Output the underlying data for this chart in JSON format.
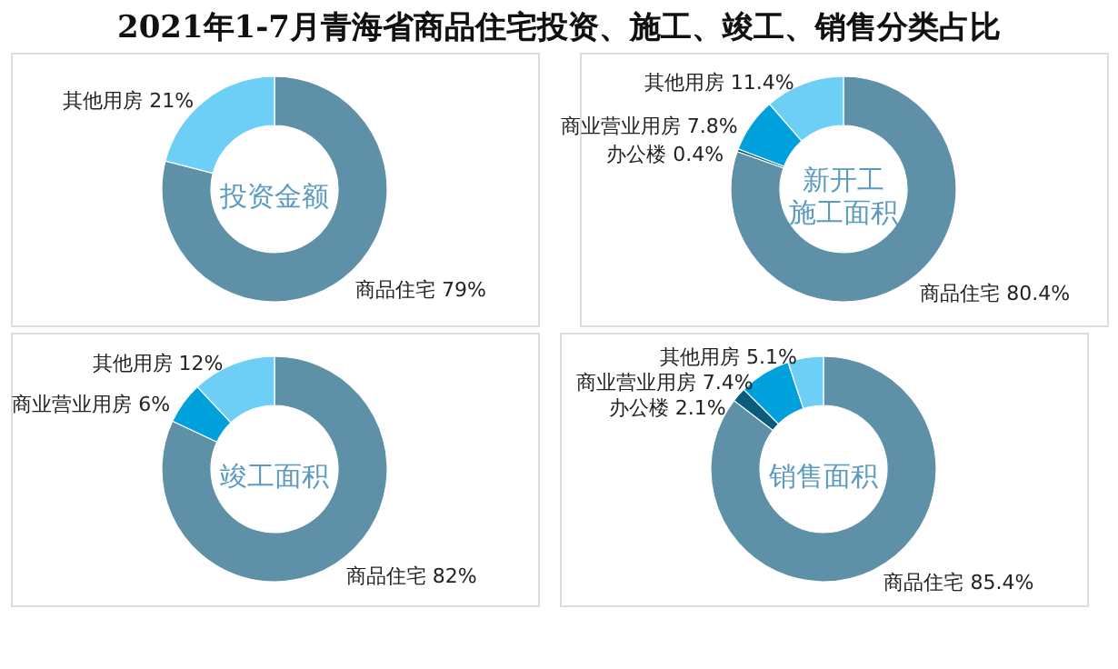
{
  "chart_data": [
    {
      "type": "other",
      "title": "2021年1-7月青海省商品住宅投资、施工、竣工、销售分类占比"
    },
    {
      "type": "donut",
      "title": "投资金额",
      "categories": [
        "商品住宅",
        "其他用房"
      ],
      "values": [
        79,
        21
      ],
      "colors": [
        "#5e91a8",
        "#6ecff6"
      ],
      "value_labels": [
        "79%",
        "21%"
      ]
    },
    {
      "type": "donut",
      "title": "新开工施工面积",
      "categories": [
        "商品住宅",
        "办公楼",
        "商业营业用房",
        "其他用房"
      ],
      "values": [
        80.4,
        0.4,
        7.8,
        11.4
      ],
      "colors": [
        "#5e91a8",
        "#0a5c7a",
        "#00a0dc",
        "#6ecff6"
      ],
      "value_labels": [
        "80.4%",
        "0.4%",
        "7.8%",
        "11.4%"
      ]
    },
    {
      "type": "donut",
      "title": "竣工面积",
      "categories": [
        "商品住宅",
        "商业营业用房",
        "其他用房"
      ],
      "values": [
        82,
        6,
        12
      ],
      "colors": [
        "#5e91a8",
        "#00a0dc",
        "#6ecff6"
      ],
      "value_labels": [
        "82%",
        "6%",
        "12%"
      ]
    },
    {
      "type": "donut",
      "title": "销售面积",
      "categories": [
        "商品住宅",
        "办公楼",
        "商业营业用房",
        "其他用房"
      ],
      "values": [
        85.4,
        2.1,
        7.4,
        5.1
      ],
      "colors": [
        "#5e91a8",
        "#0a5c7a",
        "#00a0dc",
        "#6ecff6"
      ],
      "value_labels": [
        "85.4%",
        "2.1%",
        "7.4%",
        "5.1%"
      ]
    }
  ]
}
